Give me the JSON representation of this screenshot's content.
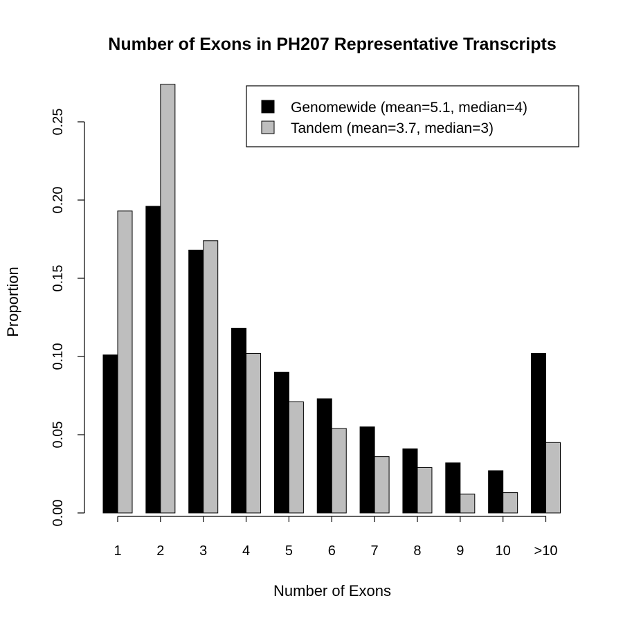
{
  "chart_data": {
    "type": "bar",
    "title": "Number of Exons in PH207 Representative Transcripts",
    "xlabel": "Number of Exons",
    "ylabel": "Proportion",
    "categories": [
      "1",
      "2",
      "3",
      "4",
      "5",
      "6",
      "7",
      "8",
      "9",
      "10",
      ">10"
    ],
    "series": [
      {
        "name": "Genomewide (mean=5.1, median=4)",
        "color": "#000000",
        "values": [
          0.101,
          0.196,
          0.168,
          0.118,
          0.09,
          0.073,
          0.055,
          0.041,
          0.032,
          0.027,
          0.102
        ]
      },
      {
        "name": "Tandem (mean=3.7, median=3)",
        "color": "#bebebe",
        "values": [
          0.193,
          0.274,
          0.174,
          0.102,
          0.071,
          0.054,
          0.036,
          0.029,
          0.012,
          0.013,
          0.045
        ]
      }
    ],
    "ylim": [
      0,
      0.275
    ],
    "yticks": [
      "0.00",
      "0.05",
      "0.10",
      "0.15",
      "0.20",
      "0.25"
    ],
    "ytick_values": [
      0,
      0.05,
      0.1,
      0.15,
      0.2,
      0.25
    ],
    "legend": "top-right",
    "grid": false
  }
}
